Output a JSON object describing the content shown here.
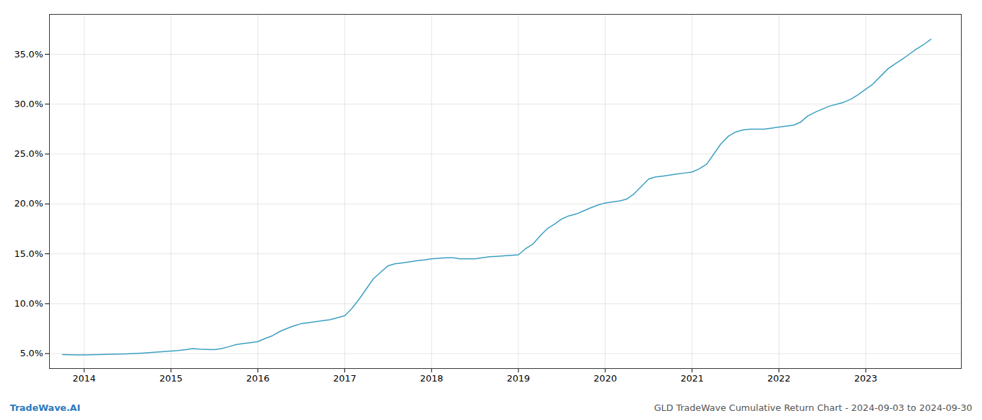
{
  "chart_data": {
    "type": "line",
    "title": "GLD TradeWave Cumulative Return Chart - 2024-09-03 to 2024-09-30",
    "annotations": [
      {
        "text": "TradeWave.AI",
        "color": "#2a7abf"
      }
    ],
    "color": "#3a9fc0",
    "grid": true,
    "x": [
      2013.75,
      2013.83,
      2013.92,
      2014.0,
      2014.08,
      2014.17,
      2014.25,
      2014.33,
      2014.42,
      2014.5,
      2014.58,
      2014.67,
      2014.75,
      2014.83,
      2014.92,
      2015.0,
      2015.08,
      2015.17,
      2015.25,
      2015.33,
      2015.42,
      2015.5,
      2015.58,
      2015.67,
      2015.75,
      2015.83,
      2015.92,
      2016.0,
      2016.08,
      2016.17,
      2016.25,
      2016.33,
      2016.42,
      2016.5,
      2016.58,
      2016.67,
      2016.75,
      2016.83,
      2016.92,
      2017.0,
      2017.08,
      2017.17,
      2017.25,
      2017.33,
      2017.42,
      2017.5,
      2017.58,
      2017.67,
      2017.75,
      2017.83,
      2017.92,
      2018.0,
      2018.08,
      2018.17,
      2018.25,
      2018.33,
      2018.42,
      2018.5,
      2018.58,
      2018.67,
      2018.75,
      2018.83,
      2018.92,
      2019.0,
      2019.08,
      2019.17,
      2019.25,
      2019.33,
      2019.42,
      2019.5,
      2019.58,
      2019.67,
      2019.75,
      2019.83,
      2019.92,
      2020.0,
      2020.08,
      2020.17,
      2020.25,
      2020.33,
      2020.42,
      2020.5,
      2020.58,
      2020.67,
      2020.75,
      2020.83,
      2020.92,
      2021.0,
      2021.08,
      2021.17,
      2021.25,
      2021.33,
      2021.42,
      2021.5,
      2021.58,
      2021.67,
      2021.75,
      2021.83,
      2021.92,
      2022.0,
      2022.08,
      2022.17,
      2022.25,
      2022.33,
      2022.42,
      2022.5,
      2022.58,
      2022.67,
      2022.75,
      2022.83,
      2022.92,
      2023.0,
      2023.08,
      2023.17,
      2023.25,
      2023.33,
      2023.42,
      2023.5,
      2023.58,
      2023.67,
      2023.75
    ],
    "values": [
      4.9,
      4.88,
      4.87,
      4.87,
      4.88,
      4.9,
      4.92,
      4.93,
      4.95,
      4.97,
      5.0,
      5.05,
      5.1,
      5.15,
      5.2,
      5.25,
      5.3,
      5.4,
      5.5,
      5.45,
      5.42,
      5.4,
      5.5,
      5.7,
      5.9,
      6.0,
      6.1,
      6.2,
      6.5,
      6.8,
      7.2,
      7.5,
      7.8,
      8.0,
      8.1,
      8.2,
      8.3,
      8.4,
      8.6,
      8.8,
      9.5,
      10.5,
      11.5,
      12.5,
      13.2,
      13.8,
      14.0,
      14.1,
      14.2,
      14.3,
      14.4,
      14.5,
      14.55,
      14.6,
      14.6,
      14.5,
      14.5,
      14.5,
      14.6,
      14.7,
      14.75,
      14.8,
      14.85,
      14.9,
      15.5,
      16.0,
      16.8,
      17.5,
      18.0,
      18.5,
      18.8,
      19.0,
      19.3,
      19.6,
      19.9,
      20.1,
      20.2,
      20.3,
      20.5,
      21.0,
      21.8,
      22.5,
      22.7,
      22.8,
      22.9,
      23.0,
      23.1,
      23.2,
      23.5,
      24.0,
      25.0,
      26.0,
      26.8,
      27.2,
      27.4,
      27.5,
      27.5,
      27.5,
      27.6,
      27.7,
      27.8,
      27.9,
      28.2,
      28.8,
      29.2,
      29.5,
      29.8,
      30.0,
      30.2,
      30.5,
      31.0,
      31.5,
      32.0,
      32.8,
      33.5,
      34.0,
      34.5,
      35.0,
      35.5,
      36.0,
      36.5
    ],
    "xlim": [
      2013.6,
      2024.1
    ],
    "xticks": [
      2014,
      2015,
      2016,
      2017,
      2018,
      2019,
      2020,
      2021,
      2022,
      2023
    ],
    "ylim": [
      3.5,
      39.0
    ],
    "yticks": [
      {
        "value": 5.0,
        "label": "5.0%"
      },
      {
        "value": 10.0,
        "label": "10.0%"
      },
      {
        "value": 15.0,
        "label": "15.0%"
      },
      {
        "value": 20.0,
        "label": "20.0%"
      },
      {
        "value": 25.0,
        "label": "25.0%"
      },
      {
        "value": 30.0,
        "label": "30.0%"
      },
      {
        "value": 35.0,
        "label": "35.0%"
      }
    ]
  }
}
